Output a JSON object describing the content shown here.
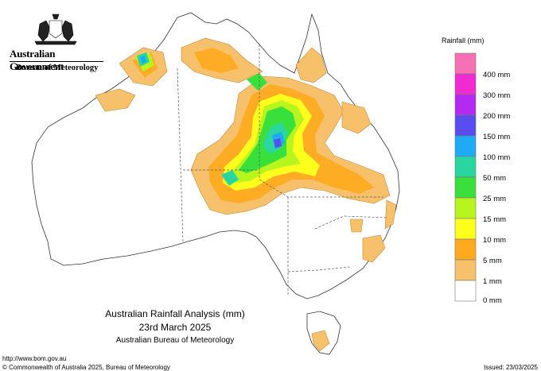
{
  "header": {
    "government": "Australian Government",
    "bureau": "Bureau of Meteorology"
  },
  "legend": {
    "title": "Rainfall (mm)",
    "items": [
      {
        "label": "",
        "color": "#f76fb4"
      },
      {
        "label": "400 mm",
        "color": "#f22ad2"
      },
      {
        "label": "300 mm",
        "color": "#b42af0"
      },
      {
        "label": "200 mm",
        "color": "#5a4df0"
      },
      {
        "label": "150 mm",
        "color": "#1eaaf5"
      },
      {
        "label": "100 mm",
        "color": "#29d6a0"
      },
      {
        "label": "50 mm",
        "color": "#39e03c"
      },
      {
        "label": "25 mm",
        "color": "#b8f51e"
      },
      {
        "label": "15 mm",
        "color": "#ffff1e"
      },
      {
        "label": "10 mm",
        "color": "#ffaa1e"
      },
      {
        "label": "5 mm",
        "color": "#f7c06a"
      },
      {
        "label": "1 mm",
        "color": "#ffffff"
      },
      {
        "label": "0 mm",
        "color": null
      }
    ]
  },
  "caption": {
    "line1": "Australian Rainfall Analysis (mm)",
    "line2": "23rd March 2025",
    "line3": "Australian Bureau of Meteorology"
  },
  "footer": {
    "url": "http://www.bom.gov.au",
    "copyright": "© Commonwealth of Australia 2025, Bureau of Meteorology",
    "issued": "Issued: 23/03/2025"
  },
  "colors": {
    "land": "#ffffff",
    "coast": "#333333",
    "boundary": "#555555"
  }
}
